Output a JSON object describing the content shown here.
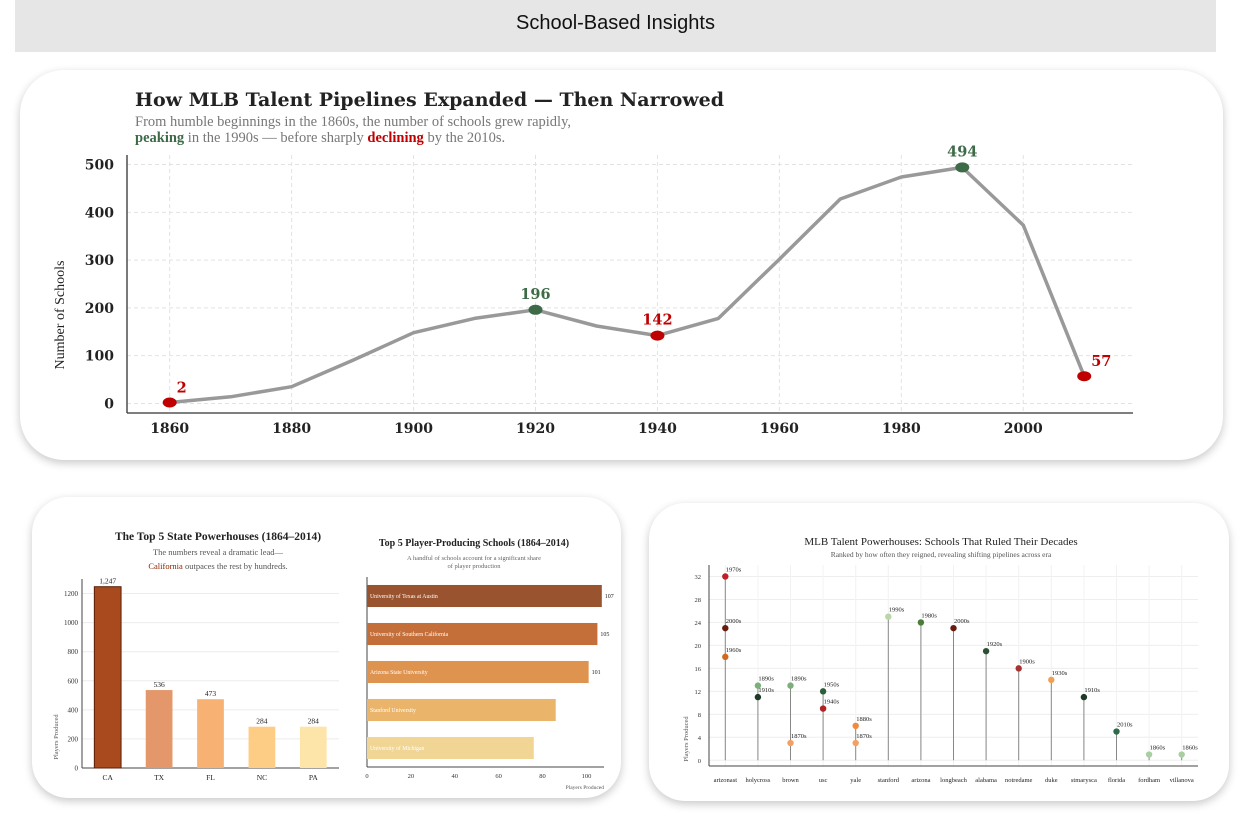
{
  "banner": {
    "title": "School-Based Insights"
  },
  "chart_data": [
    {
      "type": "line",
      "title": "How MLB Talent Pipelines Expanded — Then Narrowed",
      "subtitle_line1": "From humble beginnings in the 1860s, the number of schools grew rapidly,",
      "subtitle_line2_parts": [
        {
          "text": "peaking",
          "color": "#3d6b47",
          "bold": true
        },
        {
          "text": " in the 1990s — before sharply ",
          "color": "#777777",
          "bold": false
        },
        {
          "text": "declining",
          "color": "#c00000",
          "bold": true
        },
        {
          "text": " by the 2010s.",
          "color": "#777777",
          "bold": false
        }
      ],
      "ylabel": "Number of Schools",
      "xlim": [
        1853,
        2018
      ],
      "ylim": [
        -20,
        520
      ],
      "x_ticks": [
        1860,
        1880,
        1900,
        1920,
        1940,
        1960,
        1980,
        2000
      ],
      "y_ticks": [
        0,
        100,
        200,
        300,
        400,
        500
      ],
      "x": [
        1860,
        1870,
        1880,
        1890,
        1900,
        1910,
        1920,
        1930,
        1940,
        1950,
        1960,
        1970,
        1980,
        1990,
        2000,
        2010
      ],
      "y": [
        2,
        14,
        35,
        90,
        148,
        178,
        196,
        162,
        142,
        178,
        302,
        428,
        474,
        494,
        373,
        57
      ],
      "line_color": "#999999",
      "annotations": [
        {
          "x": 1860,
          "y": 2,
          "label": "2",
          "color": "#c00000"
        },
        {
          "x": 1920,
          "y": 196,
          "label": "196",
          "color": "#3d6b47"
        },
        {
          "x": 1940,
          "y": 142,
          "label": "142",
          "color": "#c00000"
        },
        {
          "x": 1990,
          "y": 494,
          "label": "494",
          "color": "#3d6b47"
        },
        {
          "x": 2010,
          "y": 57,
          "label": "57",
          "color": "#c00000"
        }
      ],
      "grid": true
    },
    {
      "type": "bar",
      "title": "The Top 5 State Powerhouses (1864–2014)",
      "subtitle_line1": "The numbers reveal a dramatic lead—",
      "subtitle_highlight": "California",
      "subtitle_rest": " outpaces the rest by hundreds.",
      "highlight_color": "#8b2500",
      "ylabel": "Players Produced",
      "categories": [
        "CA",
        "TX",
        "FL",
        "NC",
        "PA"
      ],
      "values": [
        1247,
        536,
        473,
        284,
        284
      ],
      "value_labels": [
        "1,247",
        "536",
        "473",
        "284",
        "284"
      ],
      "colors": [
        "#a84a1e",
        "#e3976a",
        "#f6b173",
        "#fdcd86",
        "#fde4a8"
      ],
      "y_ticks": [
        0,
        200,
        400,
        600,
        800,
        1000,
        1200
      ],
      "ylim": [
        0,
        1300
      ]
    },
    {
      "type": "bar",
      "orientation": "horizontal",
      "title": "Top 5 Player-Producing Schools (1864–2014)",
      "subtitle_line1": "A handful of schools account for a significant share",
      "subtitle_line2": "of player production",
      "xlabel": "Players Produced",
      "categories": [
        "University of Texas at Austin",
        "University of Southern California",
        "Arizona State University",
        "Stanford University",
        "University of Michigan"
      ],
      "values": [
        107,
        105,
        101,
        86,
        76
      ],
      "value_labels": [
        "107",
        "105",
        "101",
        "",
        ""
      ],
      "colors": [
        "#99532e",
        "#c46f3a",
        "#de934f",
        "#eab56b",
        "#f0d595"
      ],
      "x_ticks": [
        0,
        20,
        40,
        60,
        80,
        100
      ],
      "xlim": [
        0,
        108
      ]
    },
    {
      "type": "scatter",
      "subtype": "lollipop",
      "title": "MLB Talent Powerhouses: Schools That Ruled Their Decades",
      "subtitle": "Ranked by how often they reigned, revealing shifting pipelines across era",
      "ylabel": "Players Produced",
      "categories": [
        "arizonast",
        "holycross",
        "brown",
        "usc",
        "yale",
        "stanford",
        "arizona",
        "longbeach",
        "alabama",
        "notredame",
        "duke",
        "stmarysca",
        "florida",
        "fordham",
        "villanova"
      ],
      "y_ticks": [
        0,
        4,
        8,
        12,
        16,
        20,
        24,
        28,
        32
      ],
      "ylim": [
        -1,
        34
      ],
      "points": [
        {
          "school": "arizonast",
          "decade": "1970s",
          "value": 32,
          "color": "#c0202a"
        },
        {
          "school": "arizonast",
          "decade": "2000s",
          "value": 23,
          "color": "#6b1a10"
        },
        {
          "school": "arizonast",
          "decade": "1960s",
          "value": 18,
          "color": "#d2691e"
        },
        {
          "school": "holycross",
          "decade": "1890s",
          "value": 13,
          "color": "#7bb07a"
        },
        {
          "school": "holycross",
          "decade": "1910s",
          "value": 11,
          "color": "#1f3a26"
        },
        {
          "school": "brown",
          "decade": "1890s",
          "value": 13,
          "color": "#7bb07a"
        },
        {
          "school": "brown",
          "decade": "1870s",
          "value": 3,
          "color": "#f5a060"
        },
        {
          "school": "usc",
          "decade": "1950s",
          "value": 12,
          "color": "#2f5e3a"
        },
        {
          "school": "usc",
          "decade": "1940s",
          "value": 9,
          "color": "#b22222"
        },
        {
          "school": "yale",
          "decade": "1880s",
          "value": 6,
          "color": "#f08a3c"
        },
        {
          "school": "yale",
          "decade": "1870s",
          "value": 3,
          "color": "#f5a060"
        },
        {
          "school": "stanford",
          "decade": "1990s",
          "value": 25,
          "color": "#b8d8a8"
        },
        {
          "school": "arizona",
          "decade": "1980s",
          "value": 24,
          "color": "#4a7c3a"
        },
        {
          "school": "longbeach",
          "decade": "2000s",
          "value": 23,
          "color": "#6b1a10"
        },
        {
          "school": "alabama",
          "decade": "1920s",
          "value": 19,
          "color": "#2d4f33"
        },
        {
          "school": "notredame",
          "decade": "1900s",
          "value": 16,
          "color": "#a83232"
        },
        {
          "school": "duke",
          "decade": "1930s",
          "value": 14,
          "color": "#f0a050"
        },
        {
          "school": "stmarysca",
          "decade": "1910s",
          "value": 11,
          "color": "#1f3a26"
        },
        {
          "school": "florida",
          "decade": "2010s",
          "value": 5,
          "color": "#2f6b4a"
        },
        {
          "school": "fordham",
          "decade": "1860s",
          "value": 1,
          "color": "#a8cfa0"
        },
        {
          "school": "villanova",
          "decade": "1860s",
          "value": 1,
          "color": "#a8cfa0"
        }
      ]
    }
  ]
}
